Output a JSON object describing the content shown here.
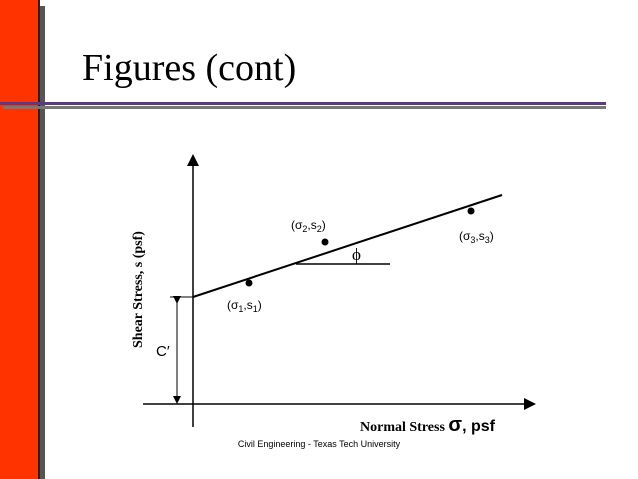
{
  "slide": {
    "title": "Figures (cont)",
    "footer": "Civil Engineering - Texas Tech University"
  },
  "diagram": {
    "y_axis_label": "Shear Stress, s (psf)",
    "x_axis_label_text": "Normal Stress ",
    "x_axis_sigma": "σ",
    "x_axis_unit": ", psf",
    "intercept_label": "C′",
    "angle_label": "ϕ",
    "points": [
      {
        "sym": "σ",
        "sub_a": "1",
        "mid": ",s",
        "sub_b": "1"
      },
      {
        "sym": "σ",
        "sub_a": "2",
        "mid": ",s",
        "sub_b": "2"
      },
      {
        "sym": "σ",
        "sub_a": "3",
        "mid": ",s",
        "sub_b": "3"
      }
    ]
  },
  "colors": {
    "accent_bar": "#ff3300",
    "title_rule": "#5a3a8a",
    "ink": "#000000"
  }
}
